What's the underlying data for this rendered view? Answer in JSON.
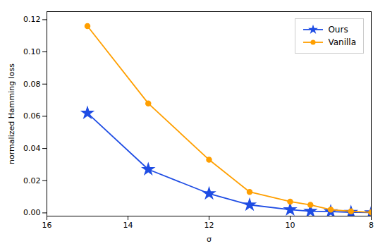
{
  "chart_data": {
    "type": "line",
    "xlabel": "σ",
    "ylabel": "normalized Hamming loss",
    "x": [
      15,
      13.5,
      12,
      11,
      10,
      9.5,
      9,
      8.5,
      8
    ],
    "series": [
      {
        "name": "Ours",
        "color": "#1f4de4",
        "marker": "star",
        "values": [
          0.062,
          0.027,
          0.012,
          0.005,
          0.002,
          0.001,
          0.0008,
          0.0004,
          0.0002
        ]
      },
      {
        "name": "Vanilla",
        "color": "#ff9f00",
        "marker": "circle",
        "values": [
          0.116,
          0.068,
          0.033,
          0.013,
          0.007,
          0.005,
          0.002,
          0.001,
          0.0003
        ]
      }
    ],
    "xlim": [
      16,
      8
    ],
    "ylim": [
      -0.002,
      0.125
    ],
    "xticks": [
      16,
      14,
      12,
      10,
      8
    ],
    "yticks": [
      {
        "value": 0,
        "label": "0.00"
      },
      0.02,
      0.04,
      0.06,
      0.08,
      {
        "value": 0.1,
        "label": "0.10"
      },
      0.12
    ],
    "grid": false,
    "legend": "upper right"
  }
}
